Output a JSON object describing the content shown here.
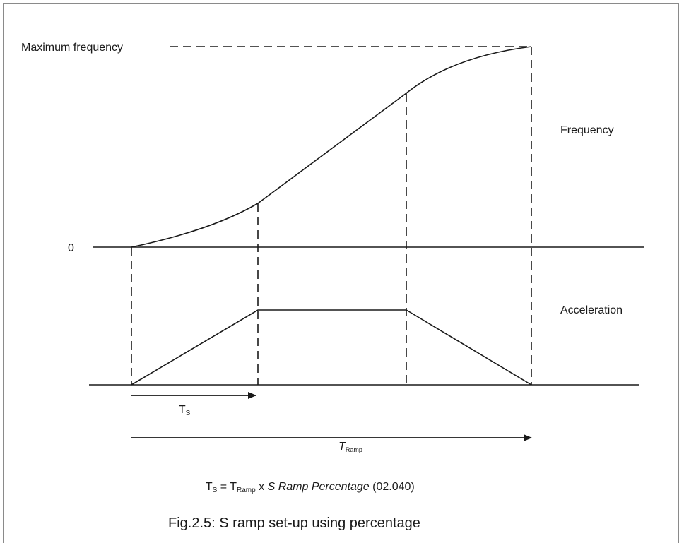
{
  "labels": {
    "max_frequency": "Maximum frequency",
    "zero": "0",
    "frequency": "Frequency",
    "acceleration": "Acceleration"
  },
  "arrows": {
    "ts_main": "T",
    "ts_sub": "S",
    "tramp_main": "T",
    "tramp_sub": "Ramp"
  },
  "formula": {
    "ts_main": "T",
    "ts_sub": "S",
    "equals": " = ",
    "tramp_main": "T",
    "tramp_sub": "Ramp",
    "times": " x ",
    "param_name": "S Ramp Percentage",
    "param_number": " (02.040)"
  },
  "caption": "Fig.2.5: S ramp set-up using percentage",
  "colors": {
    "line": "#1a1a1a",
    "frame": "#8a8a8a"
  }
}
